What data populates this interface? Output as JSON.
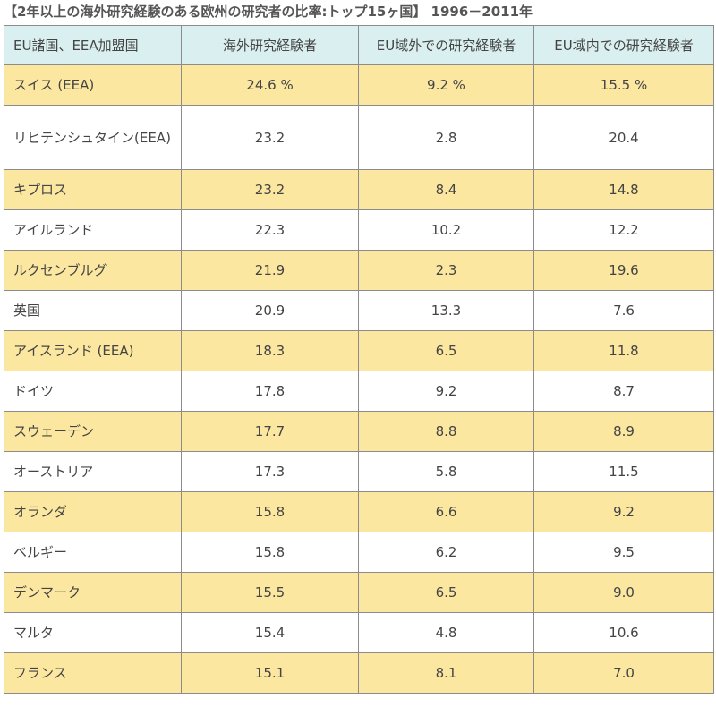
{
  "title": "【2年以上の海外研究経験のある欧州の研究者の比率:トップ15ヶ国】 1996－2011年",
  "headers": [
    "EU諸国、EEA加盟国",
    "海外研究経験者",
    "EU域外での研究経験者",
    "EU域内での研究経験者"
  ],
  "rows": [
    {
      "country": "スイス (EEA)",
      "total": "24.6 %",
      "outside_eu": "9.2 %",
      "inside_eu": "15.5 %"
    },
    {
      "country": "リヒテンシュタイン(EEA)",
      "total": "23.2",
      "outside_eu": "2.8",
      "inside_eu": "20.4"
    },
    {
      "country": "キプロス",
      "total": "23.2",
      "outside_eu": "8.4",
      "inside_eu": "14.8"
    },
    {
      "country": "アイルランド",
      "total": "22.3",
      "outside_eu": "10.2",
      "inside_eu": "12.2"
    },
    {
      "country": "ルクセンブルグ",
      "total": "21.9",
      "outside_eu": "2.3",
      "inside_eu": "19.6"
    },
    {
      "country": "英国",
      "total": "20.9",
      "outside_eu": "13.3",
      "inside_eu": "7.6"
    },
    {
      "country": "アイスランド (EEA)",
      "total": "18.3",
      "outside_eu": "6.5",
      "inside_eu": "11.8"
    },
    {
      "country": "ドイツ",
      "total": "17.8",
      "outside_eu": "9.2",
      "inside_eu": "8.7"
    },
    {
      "country": "スウェーデン",
      "total": "17.7",
      "outside_eu": "8.8",
      "inside_eu": "8.9"
    },
    {
      "country": "オーストリア",
      "total": "17.3",
      "outside_eu": "5.8",
      "inside_eu": "11.5"
    },
    {
      "country": "オランダ",
      "total": "15.8",
      "outside_eu": "6.6",
      "inside_eu": "9.2"
    },
    {
      "country": "ベルギー",
      "total": "15.8",
      "outside_eu": "6.2",
      "inside_eu": "9.5"
    },
    {
      "country": "デンマーク",
      "total": "15.5",
      "outside_eu": "6.5",
      "inside_eu": "9.0"
    },
    {
      "country": "マルタ",
      "total": "15.4",
      "outside_eu": "4.8",
      "inside_eu": "10.6"
    },
    {
      "country": "フランス",
      "total": "15.1",
      "outside_eu": "8.1",
      "inside_eu": "7.0"
    }
  ],
  "colors": {
    "header_bg": "#daefef",
    "odd_row_bg": "#fbe7a0",
    "even_row_bg": "#ffffff",
    "border": "#8c8c8c"
  }
}
